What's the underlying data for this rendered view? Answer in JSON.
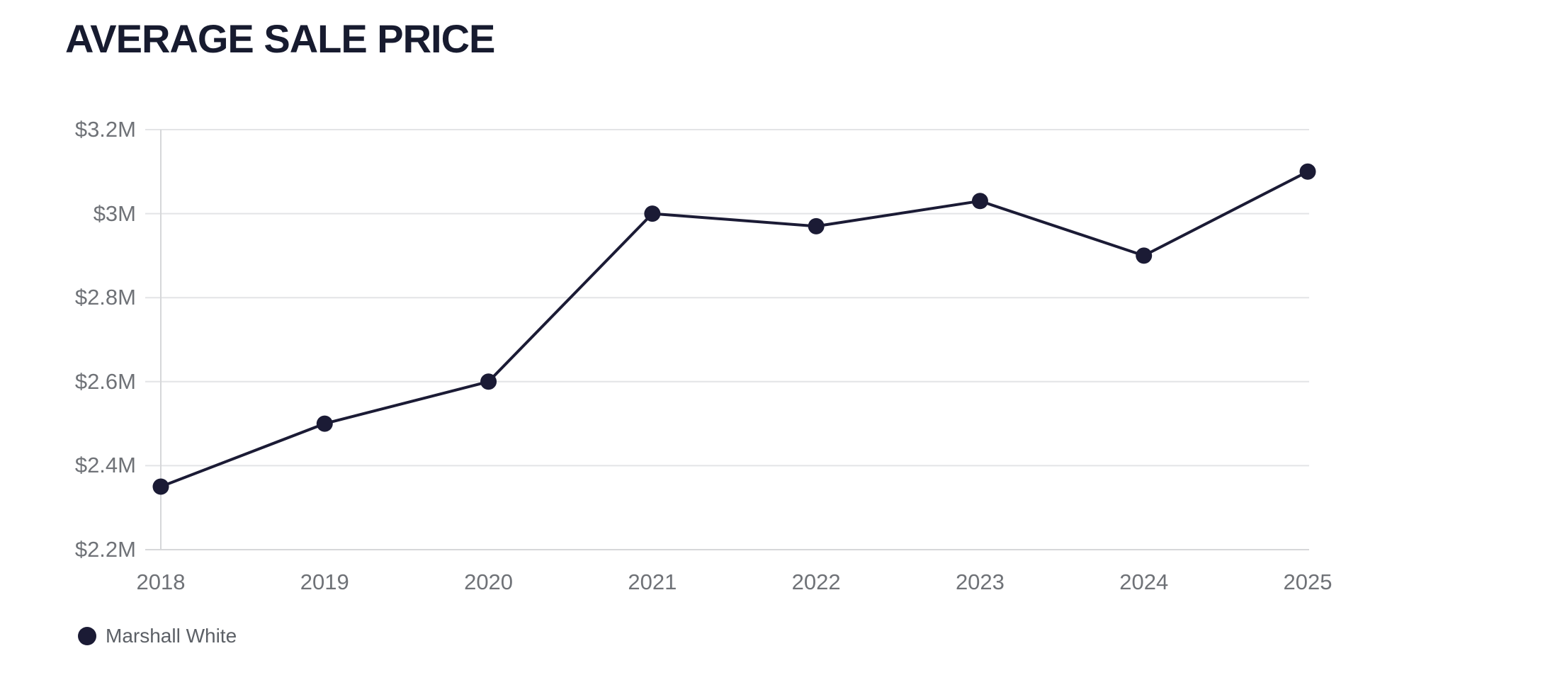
{
  "title": "AVERAGE SALE PRICE",
  "chart_data": {
    "type": "line",
    "title": "AVERAGE SALE PRICE",
    "x": [
      2018,
      2019,
      2020,
      2021,
      2022,
      2023,
      2024,
      2025
    ],
    "series": [
      {
        "name": "Marshall White",
        "values": [
          2.35,
          2.5,
          2.6,
          3.0,
          2.97,
          3.03,
          2.9,
          3.1
        ]
      }
    ],
    "xlabel": "",
    "ylabel": "",
    "units": "USD (millions)",
    "ylim": [
      2.2,
      3.2
    ],
    "yticks": {
      "values": [
        3.2,
        3.0,
        2.8,
        2.6,
        2.4,
        2.2
      ],
      "labels": [
        "$3.2M",
        "$3M",
        "$2.8M",
        "$2.6M",
        "$2.4M",
        "$2.2M"
      ]
    },
    "grid": "horizontal",
    "legend": {
      "position": "bottom-left",
      "items": [
        {
          "label": "Marshall White",
          "marker": "circle-icon",
          "color": "#1b1b35"
        }
      ]
    }
  },
  "colors": {
    "line": "#1b1b35",
    "point": "#1b1b35",
    "title_text": "#171b2f",
    "axis_text": "#6f7277",
    "legend_text": "#5c6066",
    "gridline": "#e3e4e6",
    "axis_line": "#d6d7d9",
    "background": "#ffffff"
  }
}
